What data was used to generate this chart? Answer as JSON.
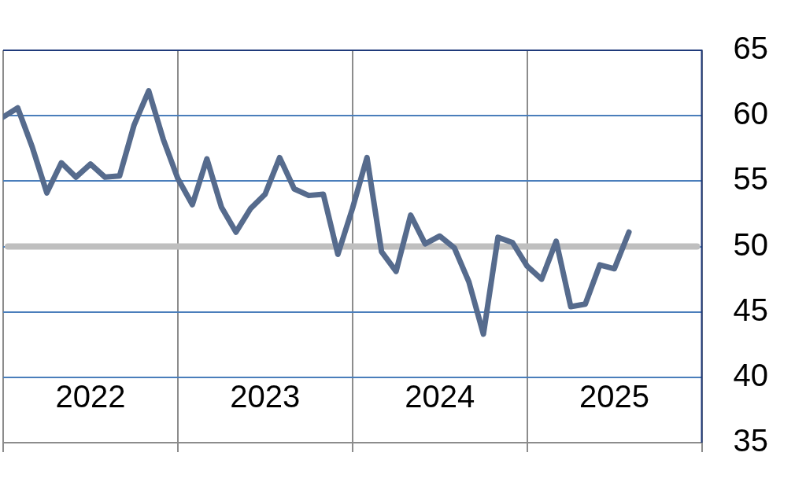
{
  "chart_data": {
    "type": "line",
    "x": [
      "2022-01",
      "2022-02",
      "2022-03",
      "2022-04",
      "2022-05",
      "2022-06",
      "2022-07",
      "2022-08",
      "2022-09",
      "2022-10",
      "2022-11",
      "2022-12",
      "2023-01",
      "2023-02",
      "2023-03",
      "2023-04",
      "2023-05",
      "2023-06",
      "2023-07",
      "2023-08",
      "2023-09",
      "2023-10",
      "2023-11",
      "2023-12",
      "2024-01",
      "2024-02",
      "2024-03",
      "2024-04",
      "2024-05",
      "2024-06",
      "2024-07",
      "2024-08",
      "2024-09",
      "2024-10",
      "2024-11",
      "2024-12",
      "2025-01",
      "2025-02",
      "2025-03",
      "2025-04",
      "2025-05",
      "2025-06",
      "2025-07",
      "2025-08"
    ],
    "series": [
      {
        "color": "#566b8d",
        "values": [
          59.9,
          60.6,
          57.6,
          54.1,
          56.4,
          55.3,
          56.3,
          55.3,
          55.4,
          59.3,
          61.9,
          58.2,
          55.2,
          53.2,
          56.7,
          53.0,
          51.1,
          52.9,
          54.0,
          56.8,
          54.4,
          53.9,
          54.0,
          49.4,
          52.9,
          56.8,
          49.6,
          48.1,
          52.4,
          50.2,
          50.8,
          49.9,
          47.3,
          43.3,
          50.7,
          50.3,
          48.5,
          47.5,
          50.4,
          45.4,
          45.6,
          48.6,
          48.3,
          51.1
        ]
      }
    ],
    "xlim": [
      "2022-01",
      "2026-01"
    ],
    "xticks": [
      {
        "value": "2022-01",
        "label": null
      },
      {
        "value": "2022-07",
        "label": "2022"
      },
      {
        "value": "2023-01",
        "label": null
      },
      {
        "value": "2023-07",
        "label": "2023"
      },
      {
        "value": "2024-01",
        "label": null
      },
      {
        "value": "2024-07",
        "label": "2024"
      },
      {
        "value": "2025-01",
        "label": null
      },
      {
        "value": "2025-07",
        "label": "2025"
      },
      {
        "value": "2026-01",
        "label": null
      }
    ],
    "ylim": [
      35,
      65
    ],
    "yticks": [
      35,
      40,
      45,
      50,
      55,
      60,
      65
    ],
    "grid": true,
    "legend": false,
    "marker": "none",
    "line_style": "solid",
    "ref_lines": [
      {
        "axis": "y",
        "value": 50,
        "color": "#bfbfbf"
      }
    ]
  }
}
